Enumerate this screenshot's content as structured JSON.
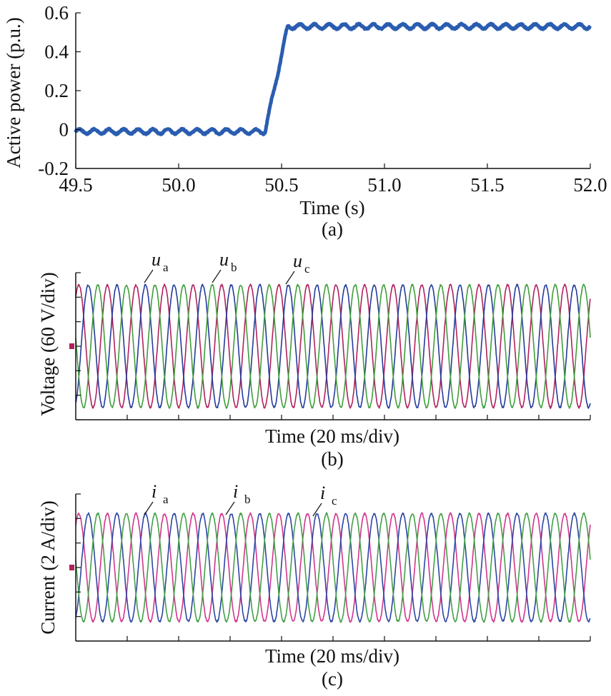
{
  "chart_data": [
    {
      "panel": "a",
      "type": "line",
      "caption": "(a)",
      "xlabel": "Time (s)",
      "ylabel": "Active power (p.u.)",
      "xlim": [
        49.5,
        52.0
      ],
      "ylim": [
        -0.2,
        0.6
      ],
      "xticks": [
        "49.5",
        "50.0",
        "50.5",
        "51.0",
        "51.5",
        "52.0"
      ],
      "yticks": [
        "0.6",
        "0.4",
        "0.2",
        "0",
        "-0.2"
      ],
      "grid": false,
      "color": "#2a5db0",
      "series": [
        {
          "x": [
            49.5,
            50.42,
            50.53,
            52.0
          ],
          "y": [
            -0.01,
            -0.01,
            0.53,
            0.53
          ],
          "ripple_amplitude": 0.012
        }
      ]
    },
    {
      "panel": "b",
      "type": "line",
      "caption": "(b)",
      "xlabel": "Time (20 ms/div)",
      "ylabel": "Voltage (60 V/div)",
      "x_divisions": 10,
      "y_divisions": 6,
      "grid": false,
      "series": [
        {
          "name": "u",
          "sub": "a",
          "color": "#b0215c",
          "phase_deg": 0
        },
        {
          "name": "u",
          "sub": "b",
          "color": "#233b9a",
          "phase_deg": -120
        },
        {
          "name": "u",
          "sub": "c",
          "color": "#3f9e3a",
          "phase_deg": 120
        }
      ],
      "cycles": 18,
      "amplitude_div": 2.5
    },
    {
      "panel": "c",
      "type": "line",
      "caption": "(c)",
      "xlabel": "Time (20 ms/div)",
      "ylabel": "Current (2 A/div)",
      "x_divisions": 10,
      "y_divisions": 6,
      "grid": false,
      "series": [
        {
          "name": "i",
          "sub": "a",
          "color": "#d2358c",
          "phase_deg": 0
        },
        {
          "name": "i",
          "sub": "b",
          "color": "#2c46a3",
          "phase_deg": -120
        },
        {
          "name": "i",
          "sub": "c",
          "color": "#43a047",
          "phase_deg": 120
        }
      ],
      "cycles": 18,
      "amplitude_div": 2.2
    }
  ]
}
